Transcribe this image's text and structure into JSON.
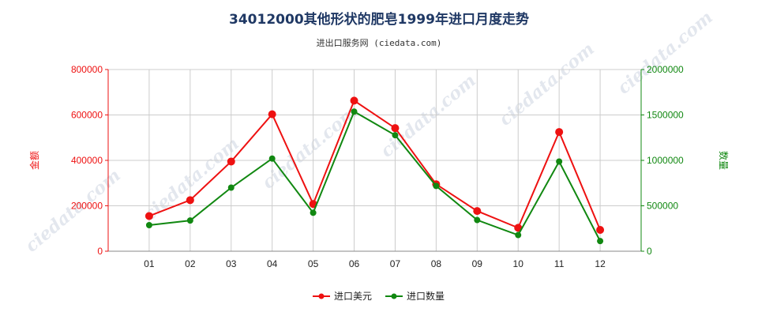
{
  "title": "34012000其他形状的肥皂1999年进口月度走势",
  "subtitle": "进出口服务网 (ciedata.com)",
  "colors": {
    "left_series": "#ee1111",
    "right_series": "#118811",
    "grid": "#cccccc"
  },
  "chart_data": {
    "type": "line",
    "categories": [
      "01",
      "02",
      "03",
      "04",
      "05",
      "06",
      "07",
      "08",
      "09",
      "10",
      "11",
      "12"
    ],
    "y_left": {
      "label": "金额",
      "ylim": [
        0,
        800000
      ],
      "ticks": [
        "0",
        "200000",
        "400000",
        "600000",
        "800000"
      ]
    },
    "y_right": {
      "label": "数量",
      "ylim": [
        0,
        2000000
      ],
      "ticks": [
        "0",
        "500000",
        "1000000",
        "1500000",
        "2000000"
      ]
    },
    "series": [
      {
        "name": "进口美元",
        "axis": "left",
        "color": "#ee1111",
        "values": [
          155000,
          225000,
          395000,
          603000,
          208000,
          663000,
          542000,
          295000,
          177000,
          103000,
          525000,
          94000
        ]
      },
      {
        "name": "进口数量",
        "axis": "right",
        "color": "#118811",
        "values": [
          287000,
          338000,
          700000,
          1020000,
          423000,
          1537000,
          1277000,
          718000,
          343000,
          178000,
          987000,
          112000
        ]
      }
    ],
    "grid": true,
    "legend_position": "bottom-center"
  }
}
